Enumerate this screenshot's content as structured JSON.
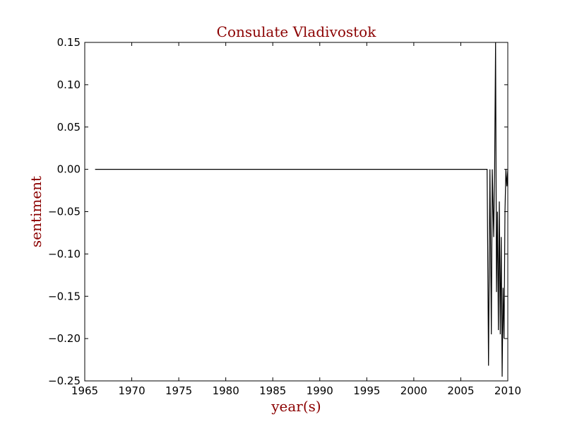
{
  "chart_data": {
    "type": "line",
    "title": "Consulate Vladivostok",
    "xlabel": "year(s)",
    "ylabel": "sentiment",
    "xlim": [
      1965,
      2010
    ],
    "ylim": [
      -0.25,
      0.15
    ],
    "x_ticks": [
      1965,
      1970,
      1975,
      1980,
      1985,
      1990,
      1995,
      2000,
      2005,
      2010
    ],
    "x_tick_labels": [
      "1965",
      "1970",
      "1975",
      "1980",
      "1985",
      "1990",
      "1995",
      "2000",
      "2005",
      "2010"
    ],
    "y_ticks": [
      0.15,
      0.1,
      0.05,
      0.0,
      -0.05,
      -0.1,
      -0.15,
      -0.2,
      -0.25
    ],
    "y_tick_labels": [
      "0.15",
      "0.10",
      "0.05",
      "0.00",
      "−0.05",
      "−0.10",
      "−0.15",
      "−0.20",
      "−0.25"
    ],
    "grid": false,
    "legend": "none",
    "series": [
      {
        "color": "#000000",
        "x": [
          1966.1,
          2007.6,
          2007.8,
          2007.95,
          2008.1,
          2008.25,
          2008.35,
          2008.5,
          2008.6,
          2008.7,
          2008.8,
          2008.9,
          2009.0,
          2009.1,
          2009.2,
          2009.3,
          2009.4,
          2009.5,
          2009.6,
          2009.7,
          2009.8,
          2009.9,
          2010.0
        ],
        "y": [
          0.0,
          0.0,
          0.0,
          -0.232,
          0.0,
          -0.195,
          0.0,
          -0.08,
          0.0,
          0.15,
          -0.145,
          -0.05,
          -0.19,
          -0.038,
          -0.195,
          -0.08,
          -0.245,
          -0.14,
          -0.2,
          -0.05,
          0.0,
          -0.02,
          0.0
        ]
      }
    ]
  },
  "colors": {
    "title": "#8b0000",
    "axis_label": "#8b0000",
    "line": "#000000",
    "axes": "#000000"
  }
}
